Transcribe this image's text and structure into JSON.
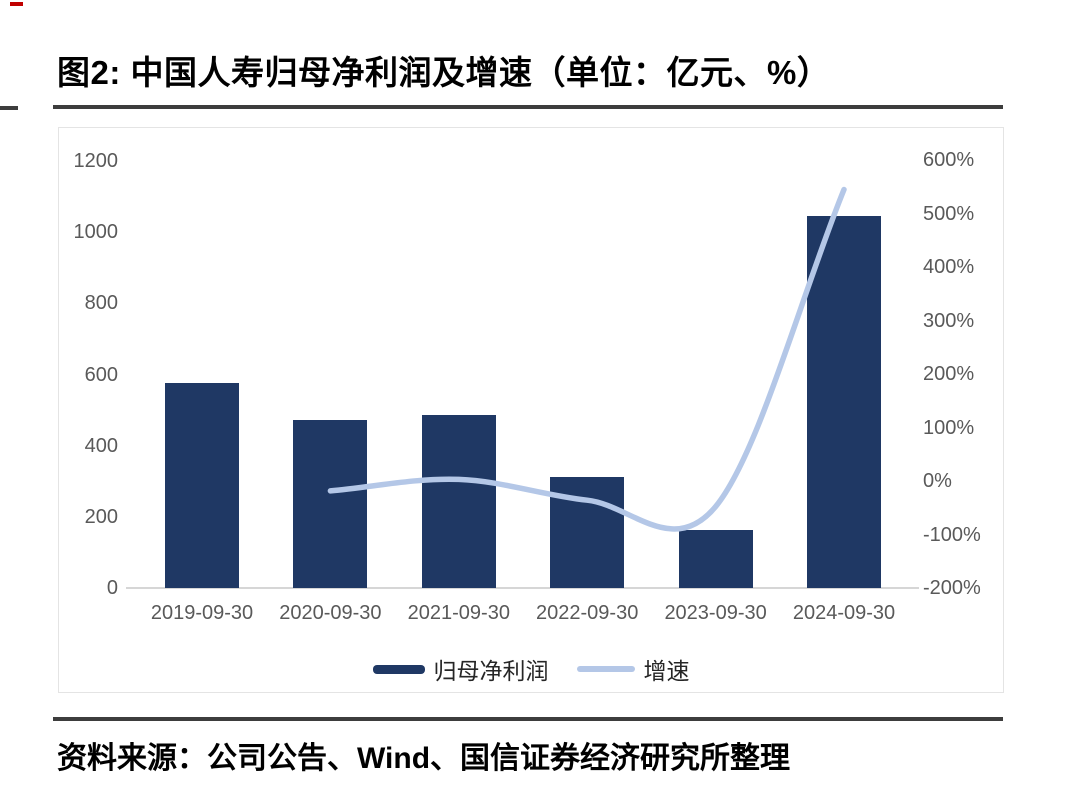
{
  "page": {
    "figure_title": "图2: 中国人寿归母净利润及增速（单位：亿元、%）",
    "source_note": "资料来源：公司公告、Wind、国信证券经济研究所整理",
    "accent_mark_color": "#c00000"
  },
  "chart_data": {
    "type": "bar",
    "title": "图2: 中国人寿归母净利润及增速（单位：亿元、%）",
    "categories": [
      "2019-09-30",
      "2020-09-30",
      "2021-09-30",
      "2022-09-30",
      "2023-09-30",
      "2024-09-30"
    ],
    "series": [
      {
        "name": "归母净利润",
        "type": "bar",
        "axis": "left",
        "color": "#1F3864",
        "values": [
          577,
          471,
          485,
          311,
          162,
          1045
        ]
      },
      {
        "name": "增速",
        "type": "line",
        "axis": "right",
        "color": "#B4C7E7",
        "values": [
          null,
          -18.4,
          3.0,
          -35.8,
          -47.9,
          544.9
        ]
      }
    ],
    "left_axis": {
      "min": 0,
      "max": 1200,
      "step": 200,
      "unit": "亿元"
    },
    "right_axis": {
      "min": -200,
      "max": 600,
      "step": 100,
      "suffix": "%",
      "unit": "%"
    },
    "grid": false,
    "legend_position": "bottom"
  }
}
